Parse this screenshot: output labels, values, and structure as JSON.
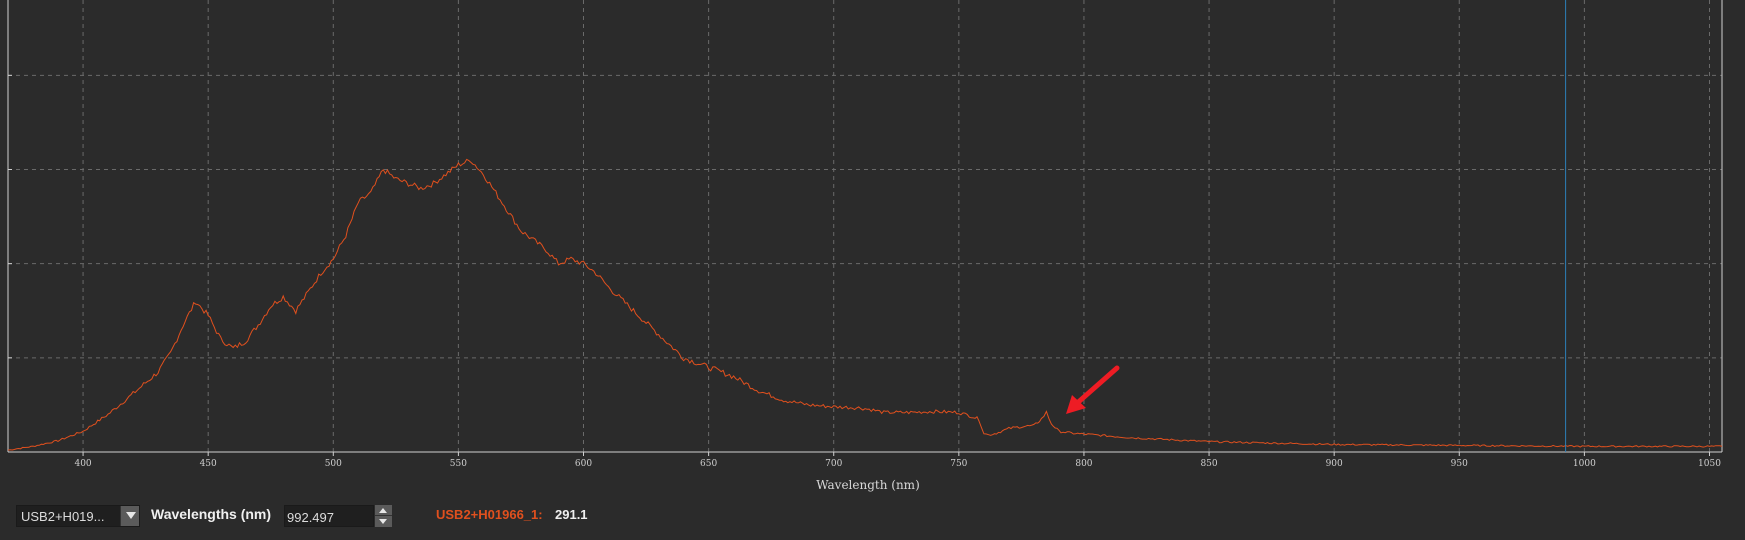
{
  "chart_data": {
    "type": "line",
    "xlabel": "Wavelength (nm)",
    "ylabel": "",
    "xlim": [
      370,
      1055
    ],
    "ylim": [
      0,
      4.8
    ],
    "x_ticks": [
      400,
      450,
      500,
      550,
      600,
      650,
      700,
      750,
      800,
      850,
      900,
      950,
      1000,
      1050
    ],
    "y_ticks": [
      1,
      2,
      3,
      4
    ],
    "grid": true,
    "cursor_x": 992.497,
    "series": [
      {
        "name": "USB2+H01966_1",
        "color": "#e0501e",
        "x": [
          370,
          380,
          390,
          400,
          410,
          420,
          430,
          435,
          440,
          445,
          450,
          455,
          460,
          465,
          470,
          475,
          480,
          485,
          490,
          495,
          500,
          505,
          510,
          515,
          520,
          525,
          530,
          535,
          540,
          545,
          550,
          555,
          560,
          565,
          570,
          575,
          580,
          585,
          590,
          595,
          600,
          605,
          610,
          620,
          630,
          640,
          650,
          660,
          670,
          680,
          690,
          700,
          710,
          715,
          720,
          730,
          740,
          750,
          755,
          758,
          760,
          762,
          765,
          770,
          775,
          780,
          783,
          785,
          787,
          790,
          795,
          800,
          810,
          820,
          850,
          900,
          950,
          1000,
          1050,
          1055
        ],
        "y": [
          0.02,
          0.06,
          0.12,
          0.22,
          0.4,
          0.62,
          0.85,
          1.05,
          1.35,
          1.6,
          1.45,
          1.2,
          1.1,
          1.18,
          1.35,
          1.55,
          1.65,
          1.5,
          1.7,
          1.9,
          2.05,
          2.3,
          2.65,
          2.75,
          3.0,
          2.9,
          2.85,
          2.8,
          2.85,
          2.95,
          3.05,
          3.1,
          2.95,
          2.75,
          2.55,
          2.35,
          2.25,
          2.15,
          2.0,
          2.05,
          2.0,
          1.9,
          1.75,
          1.5,
          1.25,
          1.0,
          0.9,
          0.8,
          0.65,
          0.55,
          0.5,
          0.48,
          0.47,
          0.45,
          0.42,
          0.42,
          0.43,
          0.42,
          0.38,
          0.35,
          0.2,
          0.18,
          0.2,
          0.25,
          0.27,
          0.28,
          0.35,
          0.42,
          0.3,
          0.22,
          0.2,
          0.19,
          0.17,
          0.15,
          0.11,
          0.08,
          0.07,
          0.06,
          0.06,
          0.06
        ]
      }
    ]
  },
  "controls": {
    "device_select": "USB2+H019...",
    "wavelength_label": "Wavelengths (nm)",
    "wavelength_value": "992.497",
    "readout_name": "USB2+H01966_1:",
    "readout_value": "291.1"
  },
  "colors": {
    "background": "#2b2b2b",
    "grid": "#6a6a6a",
    "series": "#e0501e",
    "cursor": "#2d7fb8",
    "annotation_arrow": "#ee1c24"
  },
  "icons": {
    "dropdown": "chevron-down-icon",
    "spin_up": "spin-up-icon",
    "spin_down": "spin-down-icon",
    "annotation": "red-arrow-annotation"
  }
}
